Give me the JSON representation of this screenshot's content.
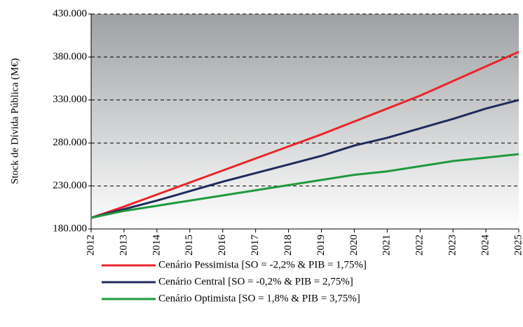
{
  "chart_data": {
    "type": "line",
    "y_label": "Stock de Dívida Pública (M€)",
    "x": [
      2012,
      2013,
      2014,
      2015,
      2016,
      2017,
      2018,
      2019,
      2020,
      2021,
      2022,
      2023,
      2024,
      2025
    ],
    "xlim": [
      2012,
      2025
    ],
    "xticks": [
      2012,
      2013,
      2014,
      2015,
      2016,
      2017,
      2018,
      2019,
      2020,
      2021,
      2022,
      2023,
      2024,
      2025
    ],
    "ylim": [
      180000,
      430000
    ],
    "yticks": [
      {
        "value": 180000,
        "label": "180.000"
      },
      {
        "value": 230000,
        "label": "230.000"
      },
      {
        "value": 280000,
        "label": "280.000"
      },
      {
        "value": 330000,
        "label": "330.000"
      },
      {
        "value": 380000,
        "label": "380.000"
      },
      {
        "value": 430000,
        "label": "430.000"
      }
    ],
    "grid": true,
    "legend": "bottom",
    "series": [
      {
        "name": "Cenário Pessimista [SO = -2,2% & PIB = 1,75%]",
        "color": "#e8262b",
        "values": [
          193000,
          206000,
          220000,
          234000,
          248000,
          262000,
          276000,
          290000,
          305000,
          320000,
          335000,
          352000,
          369000,
          386000
        ]
      },
      {
        "name": "Cenário Central [SO = -0,2% & PIB = 2,75%]",
        "color": "#1f2a5c",
        "values": [
          193000,
          203000,
          213000,
          224000,
          235000,
          245000,
          255000,
          265000,
          277000,
          286000,
          297000,
          308000,
          320000,
          330000
        ]
      },
      {
        "name": "Cenário Optimista [SO = 1,8% & PIB = 3,75%]",
        "color": "#1e9a3c",
        "values": [
          193000,
          201000,
          207000,
          213000,
          219000,
          225000,
          231000,
          237000,
          243000,
          247000,
          253000,
          259000,
          263000,
          267000
        ]
      }
    ]
  }
}
